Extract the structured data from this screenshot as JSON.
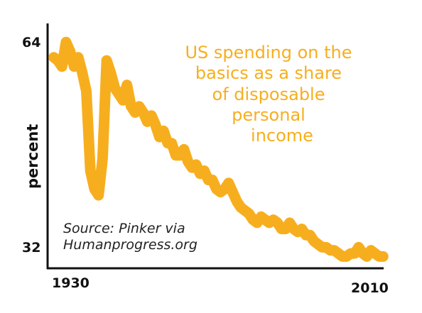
{
  "chart_data": {
    "type": "line",
    "title_lines": [
      "US spending on the",
      "basics as a share",
      "of disposable",
      "personal",
      "income"
    ],
    "ylabel": "percent",
    "xlabel": "",
    "y_tick_labels": [
      "64",
      "32"
    ],
    "x_tick_labels": [
      "1930",
      "2010"
    ],
    "ylim": [
      30,
      68
    ],
    "xlim": [
      1929,
      2012
    ],
    "grid": false,
    "annotation_lines": [
      "Source: Pinker via",
      "Humanprogress.org"
    ],
    "line_color": "#F7AE1E",
    "series": [
      {
        "x": [
          1930,
          1931,
          1932,
          1933,
          1934,
          1935,
          1936,
          1937,
          1938,
          1939,
          1940,
          1941,
          1942,
          1943,
          1944,
          1945,
          1946,
          1947,
          1948,
          1949,
          1950,
          1951,
          1952,
          1953,
          1954,
          1955,
          1956,
          1957,
          1958,
          1959,
          1960,
          1961,
          1962,
          1963,
          1964,
          1965,
          1966,
          1967,
          1968,
          1969,
          1970,
          1971,
          1972,
          1973,
          1974,
          1975,
          1976,
          1977,
          1978,
          1979,
          1980,
          1981,
          1982,
          1983,
          1984,
          1985,
          1986,
          1987,
          1988,
          1989,
          1990,
          1991,
          1992,
          1993,
          1994,
          1995,
          1996,
          1997,
          1998,
          1999,
          2000,
          2001,
          2002,
          2003,
          2004,
          2005,
          2006,
          2007,
          2008,
          2009,
          2010,
          2011
        ],
        "values": [
          63.5,
          63.0,
          62.0,
          66.0,
          64.5,
          62.0,
          63.5,
          61.0,
          58.0,
          45.0,
          42.0,
          41.0,
          47.0,
          63.0,
          61.0,
          58.5,
          57.5,
          56.5,
          59.0,
          55.5,
          54.5,
          55.5,
          54.5,
          53.0,
          54.0,
          52.5,
          50.5,
          51.5,
          49.5,
          49.5,
          47.5,
          47.5,
          48.5,
          46.5,
          45.5,
          46.0,
          44.5,
          45.0,
          43.5,
          43.5,
          42.0,
          41.5,
          42.0,
          43.0,
          41.5,
          40.0,
          39.0,
          38.5,
          38.0,
          37.0,
          36.5,
          37.5,
          37.0,
          36.5,
          37.0,
          36.5,
          35.5,
          35.5,
          36.5,
          35.5,
          35.0,
          35.5,
          34.5,
          34.5,
          33.5,
          33.0,
          32.5,
          32.5,
          32.0,
          32.0,
          31.5,
          31.0,
          31.0,
          31.5,
          31.5,
          32.5,
          31.5,
          31.0,
          32.0,
          31.5,
          31.0,
          31.0
        ]
      }
    ]
  }
}
